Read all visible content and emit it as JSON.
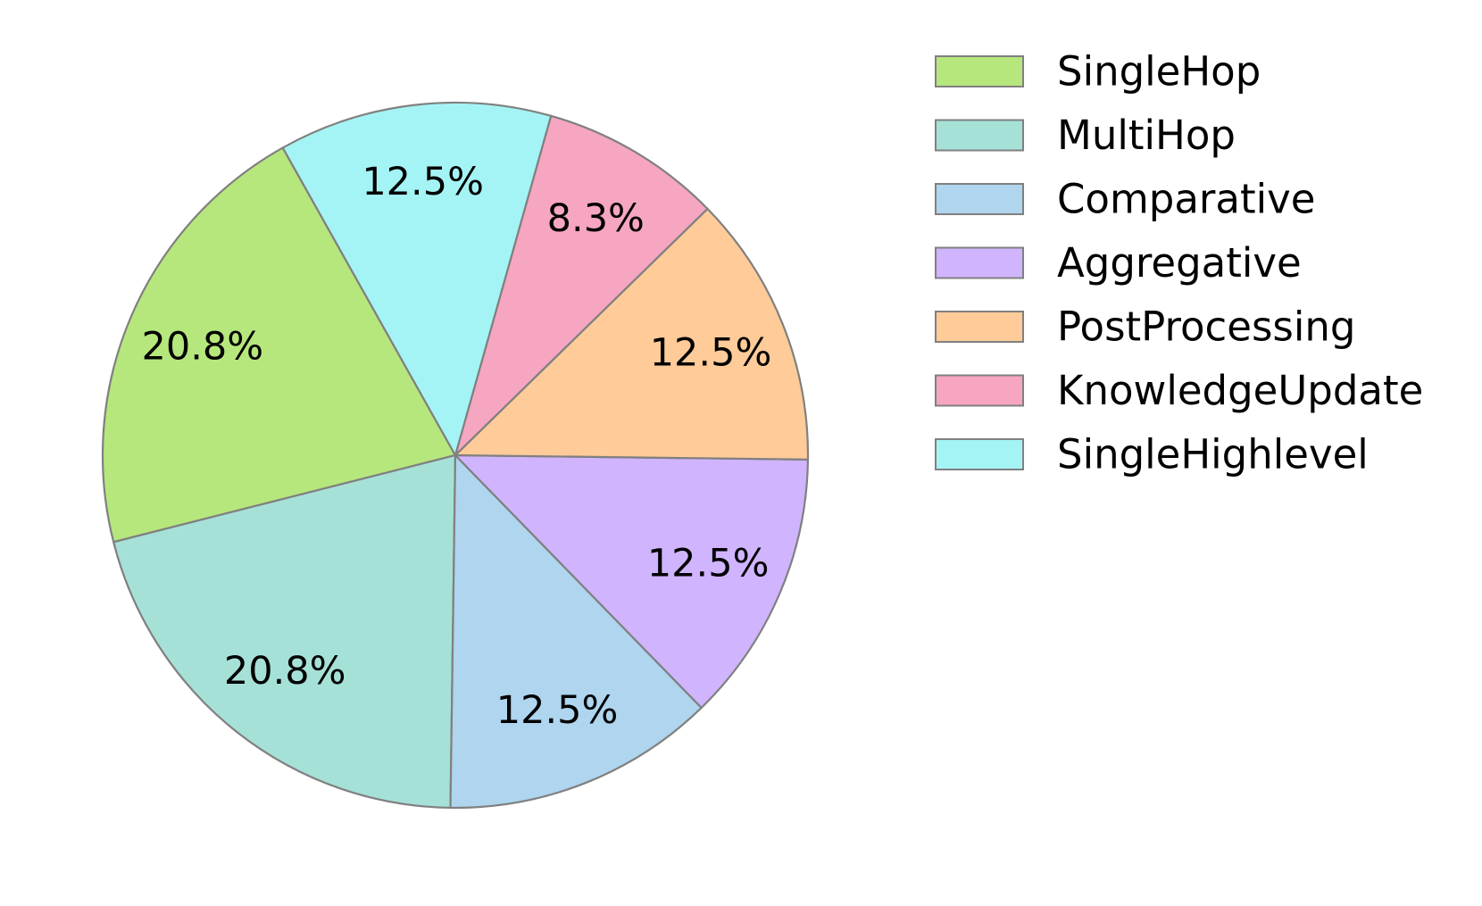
{
  "chart_data": {
    "type": "pie",
    "labels": [
      "SingleHop",
      "MultiHop",
      "Comparative",
      "Aggregative",
      "PostProcessing",
      "KnowledgeUpdate",
      "SingleHighlevel"
    ],
    "values": [
      20.8,
      20.8,
      12.5,
      12.5,
      12.5,
      8.3,
      12.5
    ],
    "value_labels": [
      "20.8%",
      "20.8%",
      "12.5%",
      "12.5%",
      "12.5%",
      "8.3%",
      "12.5%"
    ],
    "colors": [
      "#b6e77c",
      "#a6e1d8",
      "#afd5ef",
      "#d0b4fe",
      "#fecb99",
      "#f6a6c0",
      "#a5f4f5"
    ],
    "edge_color": "#808080",
    "legend_placement": "top-right"
  }
}
